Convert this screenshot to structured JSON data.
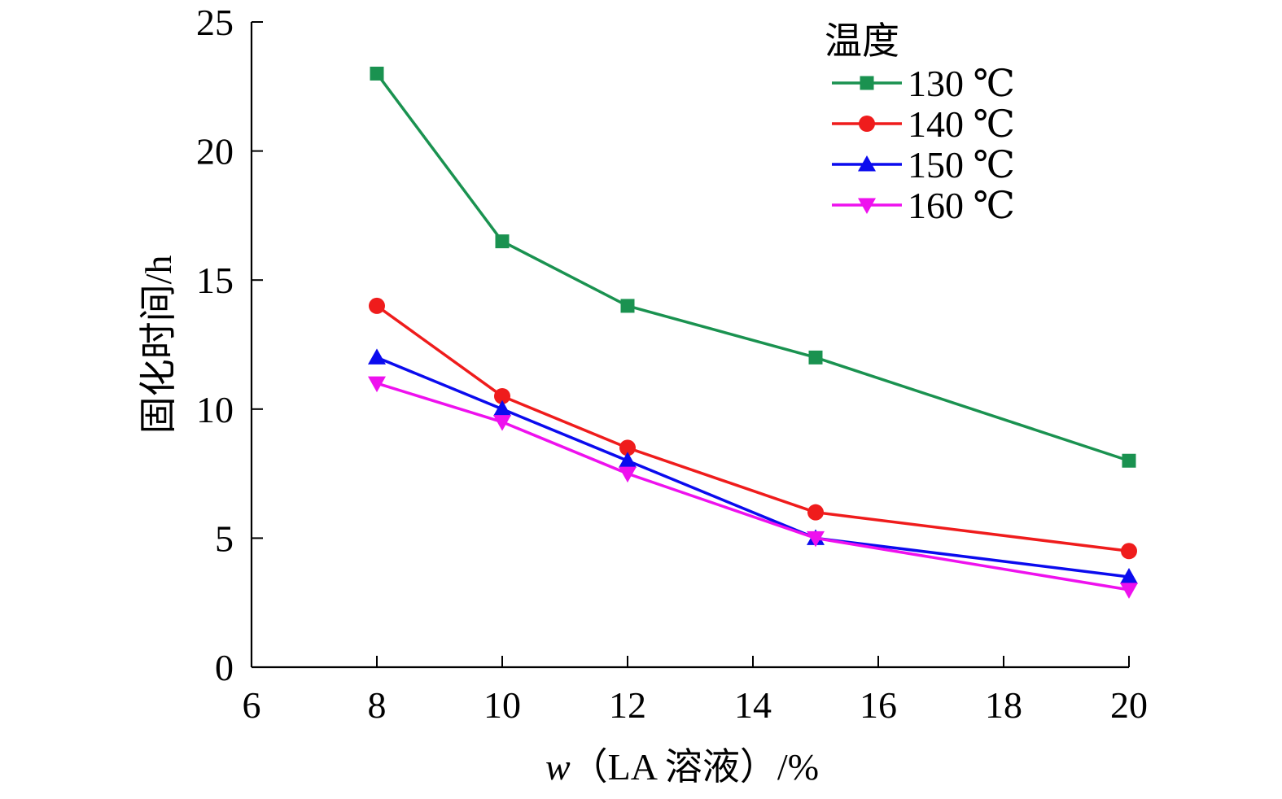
{
  "chart_data": {
    "type": "line",
    "xlabel_italic": "w",
    "xlabel_rest": "（LA 溶液）/%",
    "ylabel": "固化时间/h",
    "xlim": [
      6,
      20
    ],
    "ylim": [
      0,
      25
    ],
    "xticks": [
      6,
      8,
      10,
      12,
      14,
      16,
      18,
      20
    ],
    "yticks": [
      0,
      5,
      10,
      15,
      20,
      25
    ],
    "grid": false,
    "legend_title": "温度",
    "legend_position": "top-right",
    "x": [
      8,
      10,
      12,
      15,
      20
    ],
    "series": [
      {
        "name": "130 ℃",
        "color": "#1a9250",
        "marker": "square",
        "values": [
          23,
          16.5,
          14,
          12,
          8
        ]
      },
      {
        "name": "140 ℃",
        "color": "#ef1c1c",
        "marker": "circle",
        "values": [
          14,
          10.5,
          8.5,
          6,
          4.5
        ]
      },
      {
        "name": "150 ℃",
        "color": "#0b0bee",
        "marker": "triangle-up",
        "values": [
          12,
          10,
          8,
          5,
          3.5
        ]
      },
      {
        "name": "160 ℃",
        "color": "#ee11ee",
        "marker": "triangle-down",
        "values": [
          11,
          9.5,
          7.5,
          5,
          3
        ]
      }
    ]
  }
}
